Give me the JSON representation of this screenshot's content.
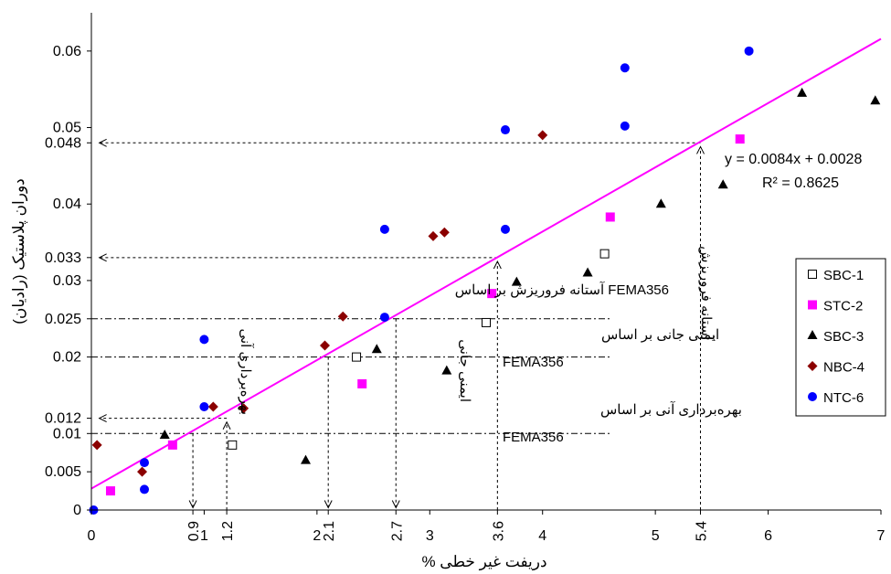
{
  "chart_data": {
    "type": "scatter",
    "xlabel": "دریفت غیر خطی %",
    "ylabel": "دوران پلاستیک (رادیان)",
    "xlim": [
      0,
      7
    ],
    "ylim": [
      0,
      0.065
    ],
    "x_ticks": [
      {
        "value": 0,
        "label": "0",
        "rot": false
      },
      {
        "value": 0.9,
        "label": "0.9",
        "rot": true
      },
      {
        "value": 1,
        "label": "1",
        "rot": false
      },
      {
        "value": 1.2,
        "label": "1.2",
        "rot": true
      },
      {
        "value": 2,
        "label": "2",
        "rot": false
      },
      {
        "value": 2.1,
        "label": "2.1",
        "rot": true
      },
      {
        "value": 2.7,
        "label": "2.7",
        "rot": true
      },
      {
        "value": 3,
        "label": "3",
        "rot": false
      },
      {
        "value": 3.6,
        "label": "3.6",
        "rot": true
      },
      {
        "value": 4,
        "label": "4",
        "rot": false
      },
      {
        "value": 5,
        "label": "5",
        "rot": false
      },
      {
        "value": 5.4,
        "label": "5.4",
        "rot": true
      },
      {
        "value": 6,
        "label": "6",
        "rot": false
      },
      {
        "value": 7,
        "label": "7",
        "rot": false
      }
    ],
    "y_ticks": [
      {
        "value": 0,
        "label": "0"
      },
      {
        "value": 0.005,
        "label": "0.005"
      },
      {
        "value": 0.01,
        "label": "0.01"
      },
      {
        "value": 0.012,
        "label": "0.012"
      },
      {
        "value": 0.02,
        "label": "0.02"
      },
      {
        "value": 0.025,
        "label": "0.025"
      },
      {
        "value": 0.03,
        "label": "0.03"
      },
      {
        "value": 0.033,
        "label": "0.033"
      },
      {
        "value": 0.04,
        "label": "0.04"
      },
      {
        "value": 0.048,
        "label": "0.048"
      },
      {
        "value": 0.05,
        "label": "0.05"
      },
      {
        "value": 0.06,
        "label": "0.06"
      }
    ],
    "series": [
      {
        "name": "SBC-1",
        "marker": "square-open",
        "color": "#000000",
        "points": [
          [
            1.25,
            0.0085
          ],
          [
            2.35,
            0.02
          ],
          [
            3.5,
            0.0245
          ],
          [
            4.55,
            0.0335
          ]
        ]
      },
      {
        "name": "STC-2",
        "marker": "square",
        "color": "#ff00ff",
        "points": [
          [
            0.17,
            0.0025
          ],
          [
            0.72,
            0.0085
          ],
          [
            2.4,
            0.0165
          ],
          [
            3.55,
            0.0283
          ],
          [
            4.6,
            0.0383
          ],
          [
            5.75,
            0.0485
          ]
        ]
      },
      {
        "name": "SBC-3",
        "marker": "triangle",
        "color": "#000000",
        "points": [
          [
            0.65,
            0.0098
          ],
          [
            1.9,
            0.0065
          ],
          [
            2.53,
            0.021
          ],
          [
            3.15,
            0.0182
          ],
          [
            3.77,
            0.0298
          ],
          [
            4.4,
            0.031
          ],
          [
            5.05,
            0.04
          ],
          [
            5.6,
            0.0425
          ],
          [
            6.3,
            0.0545
          ],
          [
            6.95,
            0.0535
          ]
        ]
      },
      {
        "name": "NBC-4",
        "marker": "diamond",
        "color": "#8b0000",
        "points": [
          [
            0.05,
            0.0085
          ],
          [
            0.45,
            0.005
          ],
          [
            1.08,
            0.0135
          ],
          [
            1.35,
            0.0133
          ],
          [
            2.07,
            0.0215
          ],
          [
            2.23,
            0.0253
          ],
          [
            3.03,
            0.0358
          ],
          [
            3.13,
            0.0363
          ],
          [
            4.0,
            0.049
          ]
        ]
      },
      {
        "name": "NTC-6",
        "marker": "circle",
        "color": "#0000ff",
        "points": [
          [
            0.02,
            0.0
          ],
          [
            0.47,
            0.0027
          ],
          [
            0.47,
            0.0062
          ],
          [
            1.0,
            0.0135
          ],
          [
            1.0,
            0.0223
          ],
          [
            2.6,
            0.0252
          ],
          [
            2.6,
            0.0367
          ],
          [
            3.67,
            0.0367
          ],
          [
            3.67,
            0.0497
          ],
          [
            4.73,
            0.0502
          ],
          [
            4.73,
            0.0578
          ],
          [
            5.83,
            0.06
          ]
        ]
      }
    ],
    "trendline": {
      "slope": 0.0084,
      "intercept": 0.0028,
      "color": "#ff00ff",
      "equation": "y = 0.0084x + 0.0028",
      "r2": "R² = 0.8625"
    },
    "performance_levels": [
      {
        "y": 0.01,
        "x_start": 0,
        "x_end": 4.6,
        "style": "dashdot"
      },
      {
        "y": 0.02,
        "x_start": 0,
        "x_end": 4.6,
        "style": "dashdot"
      },
      {
        "y": 0.025,
        "x_start": 0,
        "x_end": 4.6,
        "style": "dashdot"
      }
    ],
    "arrows": [
      {
        "from": [
          5.4,
          0.048
        ],
        "to": [
          0.07,
          0.048
        ]
      },
      {
        "from": [
          3.6,
          0.033
        ],
        "to": [
          0.07,
          0.033
        ]
      },
      {
        "from": [
          1.2,
          0.012
        ],
        "to": [
          0.07,
          0.012
        ]
      },
      {
        "from": [
          0.9,
          0.01
        ],
        "to": [
          0.9,
          0.0003
        ]
      },
      {
        "from": [
          2.1,
          0.02
        ],
        "to": [
          2.1,
          0.0003
        ]
      },
      {
        "from": [
          2.7,
          0.025
        ],
        "to": [
          2.7,
          0.0003
        ]
      }
    ],
    "vertical_guides": [
      {
        "x": 1.2,
        "y_from": 0,
        "y_to": 0.0115,
        "arrow_up": true
      },
      {
        "x": 3.6,
        "y_from": 0,
        "y_to": 0.0325,
        "arrow_up": true
      },
      {
        "x": 5.4,
        "y_from": 0,
        "y_to": 0.0475,
        "arrow_up": true
      }
    ],
    "annotations": {
      "io_line1": "بهره‌برداری آنی بر اساس",
      "io_line2": "FEMA356",
      "ls_line1": "ایمنی جانی بر اساس",
      "ls_line2": "FEMA356",
      "cp_label": "آستانه فروریزش بر اساس FEMA356",
      "io_vertical": "بهره‌برداری آنی",
      "ls_vertical": "ایمنی جانی",
      "cp_vertical": "آستانه فروریزش"
    },
    "legend_position": "right"
  }
}
